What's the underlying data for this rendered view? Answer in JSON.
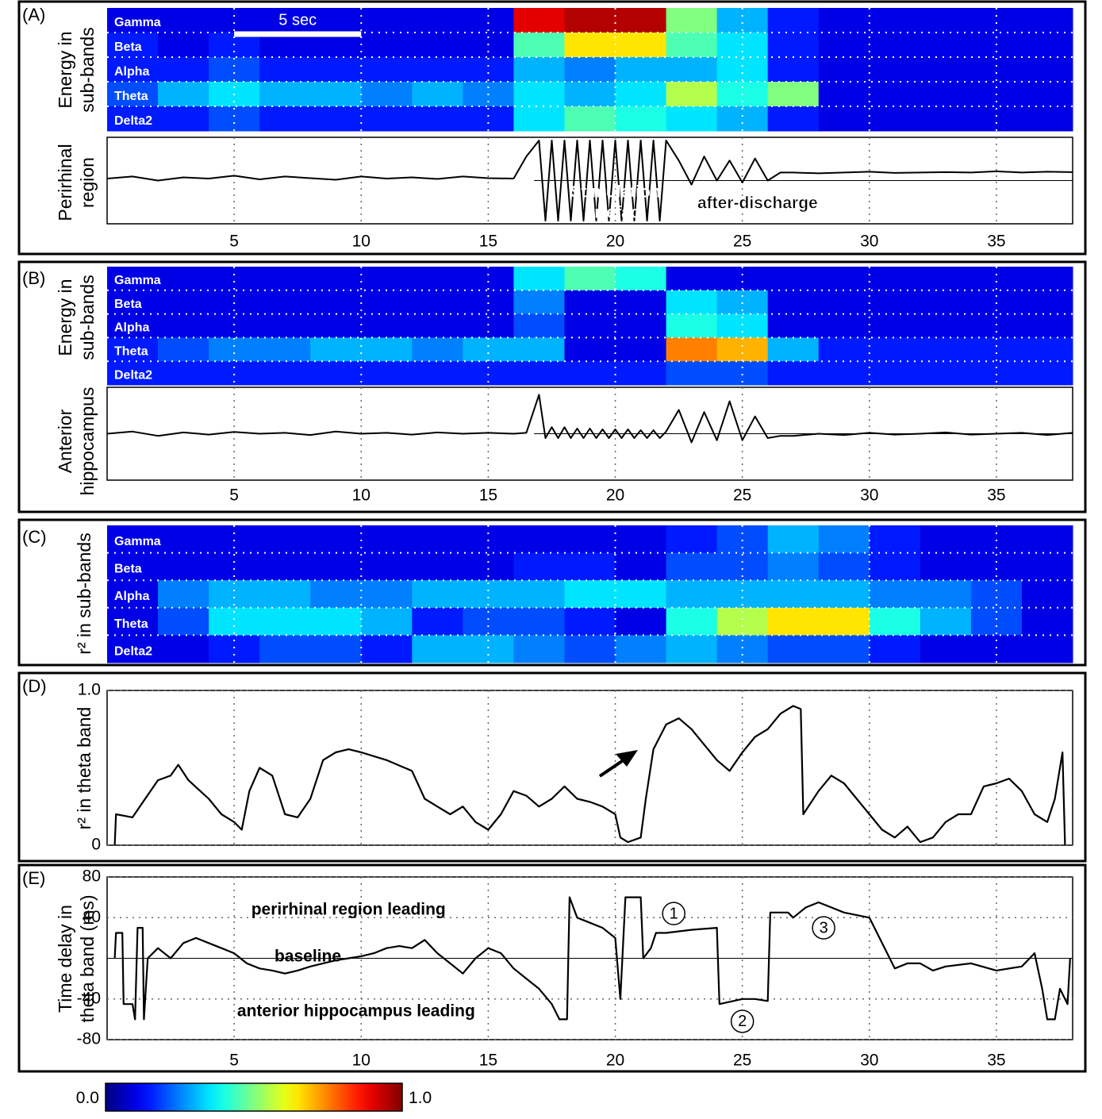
{
  "chart_data": [
    {
      "type": "heatmap",
      "panel": "(A)",
      "ylabel": [
        "Energy in",
        "sub-bands"
      ],
      "xlim": [
        0,
        38
      ],
      "xgrid": [
        5,
        10,
        15,
        20,
        25,
        30,
        35
      ],
      "xbins": [
        0,
        2,
        4,
        6,
        8,
        10,
        12,
        14,
        16,
        18,
        20,
        22,
        24,
        26,
        28,
        30,
        32,
        34,
        36,
        38
      ],
      "rows": [
        "Gamma",
        "Beta",
        "Alpha",
        "Theta",
        "Delta2"
      ],
      "values": [
        [
          0.1,
          0.1,
          0.1,
          0.1,
          0.1,
          0.1,
          0.1,
          0.1,
          0.9,
          0.95,
          0.95,
          0.5,
          0.3,
          0.15,
          0.1,
          0.1,
          0.1,
          0.1,
          0.1
        ],
        [
          0.15,
          0.1,
          0.15,
          0.1,
          0.1,
          0.1,
          0.1,
          0.1,
          0.45,
          0.65,
          0.65,
          0.45,
          0.35,
          0.15,
          0.1,
          0.1,
          0.1,
          0.1,
          0.1
        ],
        [
          0.15,
          0.15,
          0.2,
          0.15,
          0.15,
          0.15,
          0.15,
          0.15,
          0.3,
          0.25,
          0.3,
          0.3,
          0.35,
          0.15,
          0.1,
          0.1,
          0.1,
          0.1,
          0.1
        ],
        [
          0.2,
          0.3,
          0.35,
          0.3,
          0.3,
          0.25,
          0.3,
          0.25,
          0.35,
          0.3,
          0.35,
          0.55,
          0.4,
          0.5,
          0.1,
          0.1,
          0.1,
          0.1,
          0.1
        ],
        [
          0.15,
          0.15,
          0.2,
          0.15,
          0.15,
          0.15,
          0.15,
          0.15,
          0.35,
          0.45,
          0.4,
          0.35,
          0.3,
          0.15,
          0.1,
          0.1,
          0.1,
          0.1,
          0.1
        ]
      ],
      "scalebar": {
        "label": "5 sec",
        "x": [
          5,
          10
        ]
      }
    },
    {
      "type": "trace",
      "ylabel": [
        "Perirhinal",
        "region"
      ],
      "xlim": [
        0,
        38
      ],
      "ylim": [
        -1,
        1
      ],
      "xticks": [
        5,
        10,
        15,
        20,
        25,
        30,
        35
      ],
      "color": "#000000",
      "x": [
        0,
        1,
        2,
        3,
        4,
        5,
        6,
        7,
        8,
        9,
        10,
        11,
        12,
        13,
        14,
        15,
        16,
        16.5,
        17,
        17.25,
        17.5,
        17.75,
        18,
        18.25,
        18.5,
        18.75,
        19,
        19.25,
        19.5,
        19.75,
        20,
        20.25,
        20.5,
        20.75,
        21,
        21.25,
        21.5,
        21.75,
        22,
        22.5,
        23,
        23.5,
        24,
        24.5,
        25,
        25.5,
        26,
        26.5,
        27,
        28,
        29,
        30,
        31,
        32,
        33,
        34,
        35,
        36,
        37,
        38
      ],
      "values": [
        0.05,
        0.1,
        0.0,
        0.08,
        0.05,
        0.12,
        0.03,
        0.1,
        0.06,
        0.02,
        0.1,
        0.05,
        0.08,
        0.04,
        0.1,
        0.06,
        0.05,
        0.6,
        1,
        -1,
        1,
        -1,
        1,
        -1,
        1,
        -1,
        1,
        -1,
        1,
        -1,
        1,
        -1,
        1,
        -1,
        1,
        -1,
        1,
        -1,
        1,
        0.5,
        -0.1,
        0.6,
        0.0,
        0.5,
        -0.05,
        0.55,
        0.0,
        0.2,
        0.2,
        0.18,
        0.2,
        0.22,
        0.19,
        0.2,
        0.21,
        0.2,
        0.23,
        0.2,
        0.22,
        0.21
      ],
      "annotations": [
        {
          "text": [
            "Stimulation",
            "artefact"
          ],
          "x": 20
        },
        {
          "text": [
            "after-discharge"
          ],
          "x": 25.6
        }
      ]
    },
    {
      "type": "heatmap",
      "panel": "(B)",
      "ylabel": [
        "Energy in",
        "sub-bands"
      ],
      "xlim": [
        0,
        38
      ],
      "xgrid": [
        5,
        10,
        15,
        20,
        25,
        30,
        35
      ],
      "xbins": [
        0,
        2,
        4,
        6,
        8,
        10,
        12,
        14,
        16,
        18,
        20,
        22,
        24,
        26,
        28,
        30,
        32,
        34,
        36,
        38
      ],
      "rows": [
        "Gamma",
        "Beta",
        "Alpha",
        "Theta",
        "Delta2"
      ],
      "values": [
        [
          0.1,
          0.1,
          0.1,
          0.1,
          0.1,
          0.1,
          0.1,
          0.1,
          0.35,
          0.45,
          0.4,
          0.1,
          0.1,
          0.1,
          0.1,
          0.1,
          0.1,
          0.1,
          0.1
        ],
        [
          0.1,
          0.1,
          0.1,
          0.1,
          0.1,
          0.1,
          0.1,
          0.1,
          0.25,
          0.1,
          0.1,
          0.35,
          0.3,
          0.1,
          0.1,
          0.1,
          0.1,
          0.1,
          0.1
        ],
        [
          0.1,
          0.1,
          0.1,
          0.1,
          0.1,
          0.1,
          0.1,
          0.1,
          0.2,
          0.1,
          0.1,
          0.4,
          0.35,
          0.1,
          0.1,
          0.1,
          0.1,
          0.1,
          0.1
        ],
        [
          0.15,
          0.2,
          0.25,
          0.25,
          0.3,
          0.3,
          0.25,
          0.3,
          0.3,
          0.1,
          0.1,
          0.75,
          0.7,
          0.3,
          0.15,
          0.15,
          0.15,
          0.15,
          0.15
        ],
        [
          0.15,
          0.15,
          0.15,
          0.15,
          0.15,
          0.15,
          0.15,
          0.15,
          0.15,
          0.15,
          0.15,
          0.2,
          0.2,
          0.15,
          0.15,
          0.15,
          0.15,
          0.15,
          0.15
        ]
      ]
    },
    {
      "type": "trace",
      "ylabel": [
        "Anterior",
        "hippocampus"
      ],
      "xlim": [
        0,
        38
      ],
      "ylim": [
        -1,
        1
      ],
      "xticks": [
        5,
        10,
        15,
        20,
        25,
        30,
        35
      ],
      "color": "#000000",
      "x": [
        0,
        1,
        2,
        3,
        4,
        5,
        6,
        7,
        8,
        9,
        10,
        11,
        12,
        13,
        14,
        15,
        16,
        16.5,
        17,
        17.25,
        17.5,
        17.75,
        18,
        18.25,
        18.5,
        18.75,
        19,
        19.25,
        19.5,
        19.75,
        20,
        20.25,
        20.5,
        20.75,
        21,
        21.25,
        21.5,
        21.75,
        22,
        22.5,
        23,
        23.5,
        24,
        24.5,
        25,
        25.5,
        26,
        26.5,
        27,
        28,
        29,
        30,
        31,
        32,
        33,
        34,
        35,
        36,
        37,
        38
      ],
      "values": [
        0,
        0.05,
        -0.05,
        0.03,
        -0.02,
        0.04,
        0,
        0.02,
        -0.03,
        0.05,
        0,
        0.02,
        -0.02,
        0.03,
        0,
        0.02,
        0,
        0.02,
        0.9,
        -0.1,
        0.15,
        -0.1,
        0.15,
        -0.1,
        0.12,
        -0.1,
        0.12,
        -0.1,
        0.1,
        -0.1,
        0.1,
        -0.1,
        0.1,
        -0.1,
        0.08,
        -0.1,
        0.08,
        -0.1,
        0.05,
        0.55,
        -0.2,
        0.5,
        -0.15,
        0.75,
        -0.15,
        0.4,
        -0.1,
        -0.05,
        -0.05,
        0,
        -0.03,
        0.02,
        -0.02,
        0,
        0.03,
        -0.02,
        0,
        0.02,
        -0.03,
        0.02
      ]
    },
    {
      "type": "heatmap",
      "panel": "(C)",
      "ylabel": [
        "r² in sub-bands"
      ],
      "xlim": [
        0,
        38
      ],
      "xgrid": [
        5,
        10,
        15,
        20,
        25,
        30,
        35
      ],
      "xbins": [
        0,
        2,
        4,
        6,
        8,
        10,
        12,
        14,
        16,
        18,
        20,
        22,
        24,
        26,
        28,
        30,
        32,
        34,
        36,
        38
      ],
      "rows": [
        "Gamma",
        "Beta",
        "Alpha",
        "Theta",
        "Delta2"
      ],
      "values": [
        [
          0.1,
          0.1,
          0.1,
          0.1,
          0.1,
          0.1,
          0.1,
          0.1,
          0.1,
          0.1,
          0.1,
          0.15,
          0.2,
          0.3,
          0.25,
          0.15,
          0.1,
          0.1,
          0.1
        ],
        [
          0.1,
          0.1,
          0.1,
          0.1,
          0.1,
          0.1,
          0.1,
          0.1,
          0.15,
          0.15,
          0.1,
          0.2,
          0.2,
          0.25,
          0.2,
          0.15,
          0.1,
          0.1,
          0.1
        ],
        [
          0.1,
          0.25,
          0.3,
          0.3,
          0.25,
          0.25,
          0.3,
          0.3,
          0.3,
          0.35,
          0.35,
          0.3,
          0.3,
          0.3,
          0.3,
          0.25,
          0.25,
          0.2,
          0.1
        ],
        [
          0.1,
          0.2,
          0.35,
          0.35,
          0.35,
          0.3,
          0.15,
          0.2,
          0.2,
          0.15,
          0.1,
          0.4,
          0.55,
          0.65,
          0.65,
          0.4,
          0.3,
          0.2,
          0.1
        ],
        [
          0.1,
          0.1,
          0.15,
          0.2,
          0.2,
          0.15,
          0.3,
          0.3,
          0.25,
          0.2,
          0.25,
          0.3,
          0.25,
          0.2,
          0.2,
          0.15,
          0.1,
          0.1,
          0.1
        ]
      ]
    },
    {
      "type": "line",
      "panel": "(D)",
      "ylabel": [
        "r² in theta band"
      ],
      "xlim": [
        0,
        38
      ],
      "ylim": [
        0,
        1
      ],
      "yticks": [
        0,
        {
          "value": 1,
          "label": "1.0"
        }
      ],
      "xgrid": [
        5,
        10,
        15,
        20,
        25,
        30,
        35
      ],
      "grid": true,
      "color": "#000000",
      "x": [
        0.3,
        0.35,
        1,
        1.5,
        2,
        2.5,
        2.8,
        3.2,
        4,
        4.5,
        5,
        5.3,
        5.6,
        6,
        6.5,
        7,
        7.5,
        8,
        8.5,
        9,
        9.5,
        10,
        11,
        12,
        12.5,
        13,
        13.5,
        14,
        14.5,
        15,
        15.5,
        16,
        16.5,
        17,
        17.5,
        18,
        18.5,
        19,
        19.5,
        20,
        20.2,
        20.5,
        21,
        21.2,
        21.5,
        22,
        22.5,
        23,
        23.5,
        24,
        24.5,
        25,
        25.5,
        26,
        26.5,
        27,
        27.3,
        27.4,
        28,
        28.5,
        29,
        29.5,
        30,
        30.5,
        31,
        31.5,
        32,
        32.5,
        33,
        33.5,
        34,
        34.5,
        35,
        35.5,
        36,
        36.5,
        37,
        37.3,
        37.6,
        37.7
      ],
      "values": [
        0,
        0.2,
        0.18,
        0.3,
        0.42,
        0.45,
        0.52,
        0.42,
        0.3,
        0.2,
        0.15,
        0.1,
        0.35,
        0.5,
        0.45,
        0.2,
        0.18,
        0.3,
        0.55,
        0.6,
        0.62,
        0.6,
        0.55,
        0.48,
        0.3,
        0.25,
        0.2,
        0.25,
        0.15,
        0.1,
        0.2,
        0.35,
        0.32,
        0.25,
        0.3,
        0.38,
        0.3,
        0.28,
        0.25,
        0.2,
        0.05,
        0.02,
        0.05,
        0.3,
        0.62,
        0.78,
        0.82,
        0.75,
        0.65,
        0.55,
        0.48,
        0.6,
        0.7,
        0.75,
        0.85,
        0.9,
        0.88,
        0.2,
        0.35,
        0.45,
        0.4,
        0.3,
        0.2,
        0.1,
        0.05,
        0.12,
        0.02,
        0.05,
        0.15,
        0.2,
        0.2,
        0.38,
        0.4,
        0.43,
        0.35,
        0.2,
        0.15,
        0.3,
        0.6,
        0
      ]
    },
    {
      "type": "line",
      "panel": "(E)",
      "ylabel": [
        "Time delay in",
        "theta band (ms)"
      ],
      "xlim": [
        0,
        38
      ],
      "ylim": [
        -80,
        80
      ],
      "yticks": [
        -80,
        -40,
        40,
        80
      ],
      "xticks": [
        5,
        10,
        15,
        20,
        25,
        30,
        35
      ],
      "grid": true,
      "color": "#000000",
      "x": [
        0.3,
        0.35,
        0.6,
        0.65,
        1,
        1.1,
        1.2,
        1.4,
        1.45,
        1.6,
        2,
        2.5,
        3,
        3.5,
        4,
        4.5,
        5,
        5.5,
        6,
        6.5,
        7,
        7.5,
        8,
        8.5,
        9,
        9.5,
        10,
        10.5,
        11,
        11.5,
        12,
        12.5,
        13,
        13.5,
        14,
        14.5,
        15,
        15.5,
        16,
        16.5,
        17,
        17.5,
        17.8,
        18.1,
        18.2,
        18.5,
        19,
        19.5,
        20,
        20.2,
        20.4,
        21,
        21.1,
        21.4,
        21.6,
        22,
        23,
        24,
        24.1,
        25,
        25.5,
        26,
        26.1,
        26.8,
        27,
        27.5,
        28,
        28.5,
        29,
        30,
        30.5,
        31,
        31.5,
        32,
        32.5,
        33,
        34,
        35,
        36,
        36.5,
        36.8,
        37,
        37.3,
        37.5,
        37.8,
        37.9
      ],
      "values": [
        0,
        25,
        25,
        -45,
        -45,
        -60,
        30,
        30,
        -60,
        0,
        10,
        0,
        15,
        20,
        15,
        10,
        5,
        -5,
        -10,
        -12,
        -15,
        -12,
        -8,
        -5,
        -2,
        0,
        2,
        5,
        10,
        12,
        10,
        18,
        5,
        -5,
        -15,
        0,
        10,
        5,
        -10,
        -20,
        -30,
        -45,
        -60,
        -60,
        60,
        40,
        35,
        30,
        20,
        -40,
        60,
        60,
        0,
        10,
        25,
        25,
        28,
        30,
        -45,
        -40,
        -40,
        -42,
        45,
        45,
        40,
        50,
        55,
        50,
        45,
        40,
        15,
        -10,
        -5,
        -5,
        -12,
        -8,
        -5,
        -12,
        -8,
        5,
        -30,
        -60,
        -60,
        -30,
        -45,
        0
      ],
      "annotations": [
        {
          "text": "perirhinal region leading",
          "x": 9.5,
          "y": 48
        },
        {
          "text": "baseline",
          "x": 7.9,
          "y": 2
        },
        {
          "text": "anterior hippocampus leading",
          "x": 9.8,
          "y": -52
        },
        {
          "text": "1",
          "x": 22.3,
          "y": 44,
          "circled": true
        },
        {
          "text": "2",
          "x": 25,
          "y": -62,
          "circled": true
        },
        {
          "text": "3",
          "x": 28.2,
          "y": 30,
          "circled": true
        }
      ]
    },
    {
      "type": "colorbar",
      "clim": [
        0,
        1
      ],
      "ticks": [
        {
          "value": 0,
          "label": "0.0"
        },
        {
          "value": 1,
          "label": "1.0"
        }
      ]
    }
  ]
}
